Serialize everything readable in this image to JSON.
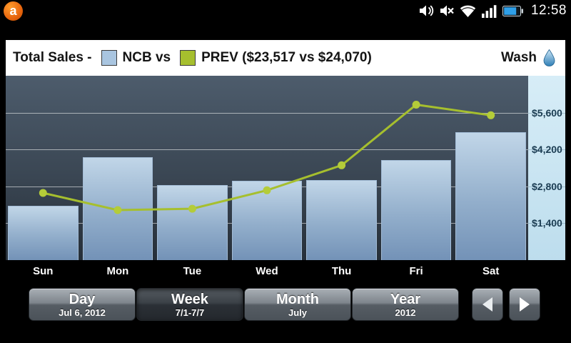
{
  "status_bar": {
    "time": "12:58",
    "app_logo_glyph": "a",
    "icons": [
      "volume-icon",
      "mute-icon",
      "wifi-icon",
      "signal-icon",
      "battery-icon"
    ]
  },
  "header": {
    "title_prefix": "Total Sales -",
    "series1_label": "NCB vs",
    "series2_label": "PREV ($23,517 vs $24,070)",
    "right_label": "Wash"
  },
  "chart_data": {
    "type": "combo",
    "categories": [
      "Sun",
      "Mon",
      "Tue",
      "Wed",
      "Thu",
      "Fri",
      "Sat"
    ],
    "series": [
      {
        "name": "NCB",
        "type": "bar",
        "color": "#a9c5e0",
        "values": [
          2050,
          3900,
          2850,
          3000,
          3050,
          3800,
          4850
        ],
        "total_label": "$23,517"
      },
      {
        "name": "PREV",
        "type": "line",
        "color": "#a6bf2e",
        "dot_color": "#b4cc39",
        "values": [
          2550,
          1900,
          1950,
          2650,
          3600,
          5900,
          5500
        ],
        "total_label": "$24,070"
      }
    ],
    "ylim": [
      0,
      7000
    ],
    "yticks": [
      {
        "value": 1400,
        "label": "$1,400"
      },
      {
        "value": 2800,
        "label": "$2,800"
      },
      {
        "value": 4200,
        "label": "$4,200"
      },
      {
        "value": 5600,
        "label": "$5,600"
      }
    ],
    "grid": true,
    "legend_position": "top",
    "title": "Total Sales"
  },
  "toolbar": {
    "buttons": [
      {
        "label": "Day",
        "sublabel": "Jul 6, 2012",
        "selected": false
      },
      {
        "label": "Week",
        "sublabel": "7/1-7/7",
        "selected": true
      },
      {
        "label": "Month",
        "sublabel": "July",
        "selected": false
      },
      {
        "label": "Year",
        "sublabel": "2012",
        "selected": false
      }
    ]
  }
}
